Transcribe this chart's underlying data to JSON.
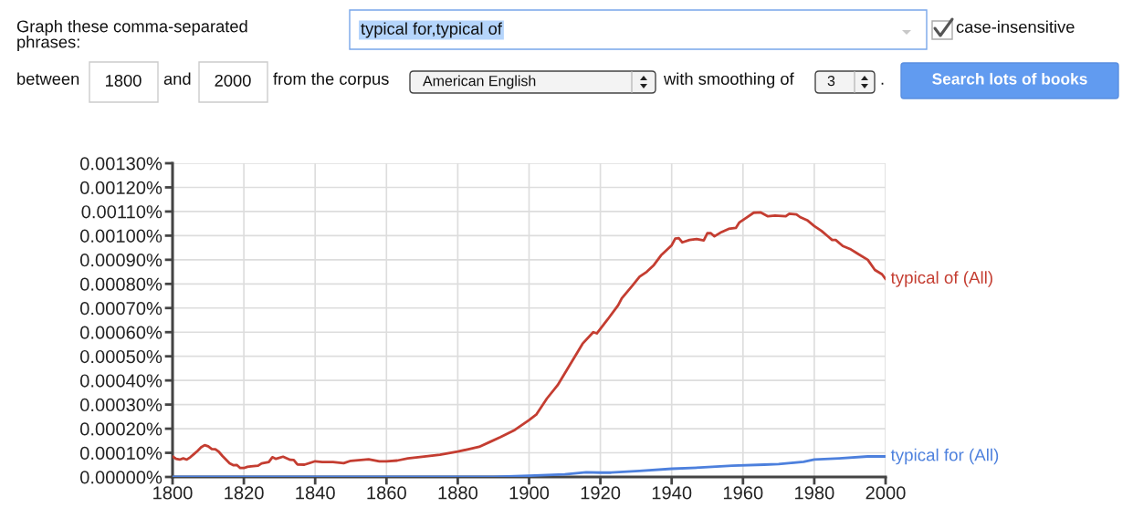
{
  "chart_data": {
    "type": "line",
    "annotations": [
      "Graph these comma-separated phrases:",
      "typical for,typical of",
      "case-insensitive",
      "between",
      "1800",
      "and",
      "2000",
      "from the corpus",
      "American English",
      "with smoothing of",
      "3",
      ".",
      "Search lots of books"
    ],
    "xlim": [
      1800,
      2000
    ],
    "xticks": [
      1800,
      1820,
      1840,
      1860,
      1880,
      1900,
      1920,
      1940,
      1960,
      1980,
      2000
    ],
    "ylim": [
      0,
      0.0013
    ],
    "yticks": [
      {
        "value": 0,
        "label": "0.00000%"
      },
      {
        "value": 0.0001,
        "label": "0.00010%"
      },
      {
        "value": 0.0002,
        "label": "0.00020%"
      },
      {
        "value": 0.0003,
        "label": "0.00030%"
      },
      {
        "value": 0.0004,
        "label": "0.00040%"
      },
      {
        "value": 0.0005,
        "label": "0.00050%"
      },
      {
        "value": 0.0006,
        "label": "0.00060%"
      },
      {
        "value": 0.0007,
        "label": "0.00070%"
      },
      {
        "value": 0.0008,
        "label": "0.00080%"
      },
      {
        "value": 0.0009,
        "label": "0.00090%"
      },
      {
        "value": 0.001,
        "label": "0.00100%"
      },
      {
        "value": 0.0011,
        "label": "0.00110%"
      },
      {
        "value": 0.0012,
        "label": "0.00120%"
      },
      {
        "value": 0.0013,
        "label": "0.00130%"
      }
    ],
    "grid": true,
    "legend": false,
    "line_style": "solid",
    "series": [
      {
        "name": "typical for (All)",
        "color": "#4d80dd",
        "x": [
          1800,
          1820,
          1840,
          1860,
          1880,
          1890,
          1900,
          1905,
          1910,
          1916,
          1920,
          1923,
          1931,
          1940,
          1948,
          1957,
          1966,
          1970,
          1977,
          1980,
          1987,
          1995,
          2000
        ],
        "values": [
          0,
          0,
          0,
          0,
          0,
          0,
          5e-06,
          8e-06,
          1.1e-05,
          1.9e-05,
          1.8e-05,
          1.8e-05,
          2.5e-05,
          3.4e-05,
          3.9e-05,
          4.7e-05,
          5.1e-05,
          5.3e-05,
          6.3e-05,
          7.2e-05,
          7.7e-05,
          8.5e-05,
          8.5e-05
        ]
      },
      {
        "name": "typical of (All)",
        "color": "#c43d31",
        "x": [
          1800,
          1801,
          1802,
          1803,
          1804,
          1805,
          1806,
          1807,
          1808,
          1809,
          1810,
          1811,
          1812,
          1813,
          1814,
          1815,
          1816,
          1817,
          1818,
          1819,
          1820,
          1821,
          1822,
          1824,
          1825,
          1827,
          1828,
          1829,
          1831,
          1833,
          1834,
          1835,
          1837,
          1840,
          1842,
          1845,
          1848,
          1850,
          1855,
          1858,
          1860,
          1863,
          1866,
          1870,
          1875,
          1880,
          1883,
          1886,
          1889,
          1892,
          1896,
          1900,
          1902,
          1905,
          1908,
          1912,
          1915,
          1918,
          1919,
          1922,
          1925,
          1926,
          1929,
          1931,
          1933,
          1935,
          1937,
          1940,
          1941,
          1942,
          1943,
          1945,
          1947,
          1949,
          1950,
          1951,
          1952,
          1954,
          1956,
          1958,
          1959,
          1961,
          1963,
          1965,
          1967,
          1969,
          1972,
          1973,
          1975,
          1976,
          1978,
          1980,
          1982,
          1984,
          1985,
          1986,
          1988,
          1990,
          1992,
          1995,
          1997,
          1999,
          2000
        ],
        "values": [
          8.5e-05,
          7.5e-05,
          7.2e-05,
          7.7e-05,
          7.2e-05,
          8.2e-05,
          9.5e-05,
          0.000108,
          0.000123,
          0.000132,
          0.000127,
          0.000116,
          0.000115,
          0.000104,
          8.7e-05,
          7.2e-05,
          5.7e-05,
          4.9e-05,
          5e-05,
          3.7e-05,
          3.7e-05,
          4.2e-05,
          4.4e-05,
          4.7e-05,
          5.6e-05,
          6.2e-05,
          8.2e-05,
          7.5e-05,
          8.4e-05,
          7.1e-05,
          7e-05,
          5.2e-05,
          5.1e-05,
          6.5e-05,
          6.2e-05,
          6.2e-05,
          5.7e-05,
          6.7e-05,
          7.3e-05,
          6.5e-05,
          6.5e-05,
          6.8e-05,
          7.7e-05,
          8.4e-05,
          9.2e-05,
          0.000105,
          0.000115,
          0.000125,
          0.000145,
          0.000165,
          0.000195,
          0.000236,
          0.000258,
          0.000325,
          0.00038,
          0.000478,
          0.000552,
          0.0006,
          0.000595,
          0.000652,
          0.000712,
          0.00074,
          0.000793,
          0.00083,
          0.00085,
          0.000878,
          0.000918,
          0.00096,
          0.000988,
          0.00099,
          0.000972,
          0.000982,
          0.000986,
          0.00098,
          0.00101,
          0.00101,
          0.000997,
          0.001015,
          0.001028,
          0.001032,
          0.001055,
          0.001075,
          0.001095,
          0.001096,
          0.00108,
          0.001083,
          0.00108,
          0.001091,
          0.001088,
          0.001077,
          0.001064,
          0.00104,
          0.00102,
          0.000995,
          0.000982,
          0.000982,
          0.000957,
          0.000945,
          0.000927,
          0.0009,
          0.000858,
          0.00084,
          0.00082
        ]
      }
    ]
  }
}
